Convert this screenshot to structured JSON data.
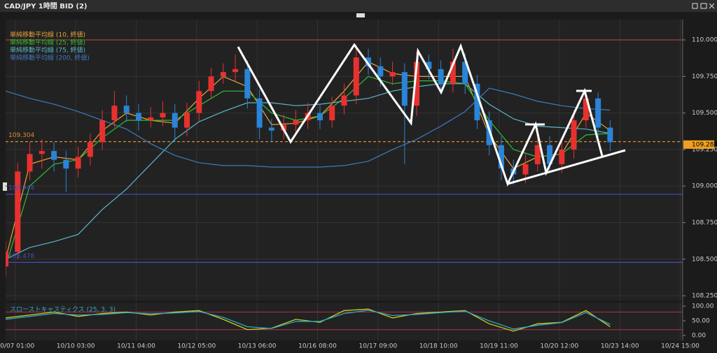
{
  "chart_data": {
    "type": "candlestick",
    "title": "CAD/JPY 1時間 BID (2)",
    "up_color": "#e8312f",
    "down_color": "#2a84d8",
    "x": [
      0,
      5,
      10,
      15,
      20,
      25,
      30,
      35,
      40,
      45,
      50,
      55,
      60,
      65,
      70,
      75,
      80,
      85,
      90,
      95,
      100,
      105,
      110,
      115,
      120,
      125,
      130,
      135,
      140,
      145,
      150,
      155,
      160,
      165,
      170,
      175,
      180,
      185,
      190,
      195,
      200,
      205,
      210,
      215,
      220,
      225,
      230,
      235,
      240,
      245,
      250
    ],
    "open": [
      108.45,
      108.55,
      109.1,
      109.22,
      109.24,
      109.18,
      109.12,
      109.2,
      109.3,
      109.45,
      109.55,
      109.5,
      109.45,
      109.47,
      109.5,
      109.4,
      109.5,
      109.65,
      109.75,
      109.78,
      109.8,
      109.6,
      109.4,
      109.38,
      109.42,
      109.45,
      109.5,
      109.45,
      109.55,
      109.62,
      109.88,
      109.82,
      109.75,
      109.78,
      109.55,
      109.85,
      109.8,
      109.7,
      109.85,
      109.7,
      109.45,
      109.28,
      109.12,
      109.08,
      109.15,
      109.28,
      109.15,
      109.25,
      109.45,
      109.6,
      109.4
    ],
    "high": [
      108.62,
      109.16,
      109.3,
      109.32,
      109.3,
      109.24,
      109.27,
      109.36,
      109.52,
      109.65,
      109.62,
      109.56,
      109.54,
      109.58,
      109.56,
      109.57,
      109.72,
      109.81,
      109.84,
      109.9,
      109.86,
      109.66,
      109.46,
      109.49,
      109.52,
      109.57,
      109.56,
      109.61,
      109.7,
      109.97,
      109.94,
      109.88,
      109.85,
      109.84,
      109.92,
      109.9,
      109.86,
      109.94,
      109.91,
      109.76,
      109.51,
      109.34,
      109.18,
      109.22,
      109.4,
      109.34,
      109.32,
      109.52,
      109.66,
      109.64,
      109.45
    ],
    "low": [
      108.38,
      108.5,
      109.04,
      109.12,
      109.1,
      108.96,
      109.06,
      109.14,
      109.25,
      109.4,
      109.44,
      109.38,
      109.4,
      109.41,
      109.3,
      109.34,
      109.44,
      109.6,
      109.7,
      109.72,
      109.53,
      109.32,
      109.3,
      109.32,
      109.36,
      109.39,
      109.39,
      109.4,
      109.49,
      109.56,
      109.76,
      109.68,
      109.69,
      109.15,
      109.48,
      109.73,
      109.63,
      109.64,
      109.63,
      109.39,
      109.21,
      109.04,
      109.01,
      109.02,
      109.1,
      109.09,
      109.09,
      109.19,
      109.4,
      109.32,
      109.24
    ],
    "close": [
      108.55,
      109.1,
      109.22,
      109.24,
      109.18,
      109.12,
      109.2,
      109.3,
      109.45,
      109.55,
      109.5,
      109.45,
      109.47,
      109.5,
      109.4,
      109.5,
      109.65,
      109.75,
      109.78,
      109.8,
      109.6,
      109.4,
      109.38,
      109.42,
      109.45,
      109.5,
      109.45,
      109.55,
      109.62,
      109.88,
      109.82,
      109.75,
      109.78,
      109.55,
      109.85,
      109.8,
      109.7,
      109.85,
      109.7,
      109.45,
      109.28,
      109.12,
      109.08,
      109.15,
      109.28,
      109.15,
      109.25,
      109.45,
      109.6,
      109.4,
      109.3
    ],
    "xlim": [
      0,
      280
    ],
    "xticks": [
      {
        "value": 4,
        "label": "10/07 01:00"
      },
      {
        "value": 29,
        "label": "10/10 03:00"
      },
      {
        "value": 54,
        "label": "10/11 04:00"
      },
      {
        "value": 79,
        "label": "10/12 05:00"
      },
      {
        "value": 104,
        "label": "10/13 06:00"
      },
      {
        "value": 129,
        "label": "10/16 08:00"
      },
      {
        "value": 154,
        "label": "10/17 09:00"
      },
      {
        "value": 179,
        "label": "10/18 10:00"
      },
      {
        "value": 204,
        "label": "10/19 11:00"
      },
      {
        "value": 229,
        "label": "10/20 12:00"
      },
      {
        "value": 254,
        "label": "10/23 14:00"
      },
      {
        "value": 279,
        "label": "10/24 15:00"
      }
    ],
    "ylim": [
      108.217,
      110.139
    ],
    "yticks": [
      {
        "value": 110,
        "label": "110.000"
      },
      {
        "value": 109.75,
        "label": "109.750"
      },
      {
        "value": 109.5,
        "label": "109.500"
      },
      {
        "value": 109.25,
        "label": "109.250"
      },
      {
        "value": 109,
        "label": "109.000"
      },
      {
        "value": 108.75,
        "label": "108.750"
      },
      {
        "value": 108.5,
        "label": "108.500"
      },
      {
        "value": 108.25,
        "label": "108.250"
      }
    ],
    "grid": true,
    "ma_x": [
      0,
      10,
      20,
      30,
      40,
      50,
      60,
      70,
      80,
      90,
      100,
      110,
      120,
      130,
      140,
      150,
      160,
      170,
      180,
      190,
      200,
      210,
      220,
      230,
      240,
      250
    ],
    "moving_averages": [
      {
        "name": "単純移動平均線 (10, 終値)",
        "color": "#e8a33a",
        "values": [
          108.5,
          109.15,
          109.2,
          109.18,
          109.38,
          109.5,
          109.45,
          109.43,
          109.6,
          109.75,
          109.68,
          109.42,
          109.43,
          109.48,
          109.65,
          109.85,
          109.77,
          109.75,
          109.75,
          109.75,
          109.35,
          109.12,
          109.2,
          109.22,
          109.5,
          109.38
        ]
      },
      {
        "name": "単純移動平均線 (25, 終値)",
        "color": "#2fbf2f",
        "values": [
          108.45,
          109.0,
          109.15,
          109.18,
          109.33,
          109.45,
          109.45,
          109.45,
          109.55,
          109.65,
          109.65,
          109.5,
          109.45,
          109.48,
          109.6,
          109.75,
          109.7,
          109.72,
          109.72,
          109.7,
          109.45,
          109.25,
          109.2,
          109.22,
          109.35,
          109.36
        ]
      },
      {
        "name": "単純移動平均線 (75, 終値)",
        "color": "#58b8c8",
        "values": [
          108.5,
          108.58,
          108.62,
          108.67,
          108.84,
          108.98,
          109.15,
          109.32,
          109.44,
          109.51,
          109.57,
          109.57,
          109.55,
          109.56,
          109.58,
          109.6,
          109.65,
          109.68,
          109.7,
          109.7,
          109.56,
          109.46,
          109.41,
          109.4,
          109.39,
          109.36
        ]
      },
      {
        "name": "単純移動平均線 (200, 終値)",
        "color": "#3d7bbf",
        "values": [
          109.65,
          109.6,
          109.56,
          109.51,
          109.45,
          109.39,
          109.29,
          109.21,
          109.16,
          109.14,
          109.14,
          109.13,
          109.13,
          109.13,
          109.14,
          109.17,
          109.25,
          109.32,
          109.41,
          109.51,
          109.67,
          109.63,
          109.58,
          109.55,
          109.53,
          109.52
        ]
      }
    ],
    "resistance_line": {
      "value": 110,
      "color": "#b04040"
    },
    "levels": [
      {
        "value": 109.304,
        "color": "#e08a2a",
        "dashed": true
      },
      {
        "value": 108.944,
        "color": "#4050b8",
        "dashed": false
      },
      {
        "value": 108.478,
        "color": "#4050b8",
        "dashed": false
      }
    ],
    "last_price": 109.284,
    "indicator": {
      "title": "スローストキャスティクス (25, 3, 3)",
      "x": [
        0,
        10,
        20,
        30,
        40,
        50,
        60,
        70,
        80,
        90,
        100,
        110,
        120,
        130,
        140,
        150,
        160,
        170,
        180,
        190,
        200,
        210,
        220,
        230,
        240,
        250
      ],
      "series": [
        {
          "color": "#c8d020",
          "values": [
            60,
            70,
            80,
            65,
            75,
            80,
            70,
            80,
            85,
            55,
            20,
            25,
            55,
            45,
            85,
            90,
            60,
            75,
            80,
            85,
            40,
            15,
            40,
            45,
            85,
            30
          ]
        },
        {
          "color": "#30a8c0",
          "values": [
            55,
            65,
            75,
            70,
            72,
            78,
            74,
            77,
            82,
            62,
            30,
            24,
            48,
            48,
            75,
            86,
            68,
            72,
            78,
            83,
            50,
            22,
            35,
            44,
            78,
            38
          ]
        }
      ],
      "ylim": [
        -16.7,
        111.9
      ],
      "yticks": [
        {
          "value": 100,
          "label": "100.00"
        },
        {
          "value": 50,
          "label": "50.00"
        },
        {
          "value": 0,
          "label": "0.00"
        }
      ],
      "bands": [
        80,
        20
      ],
      "band_color": "#b03050"
    }
  }
}
